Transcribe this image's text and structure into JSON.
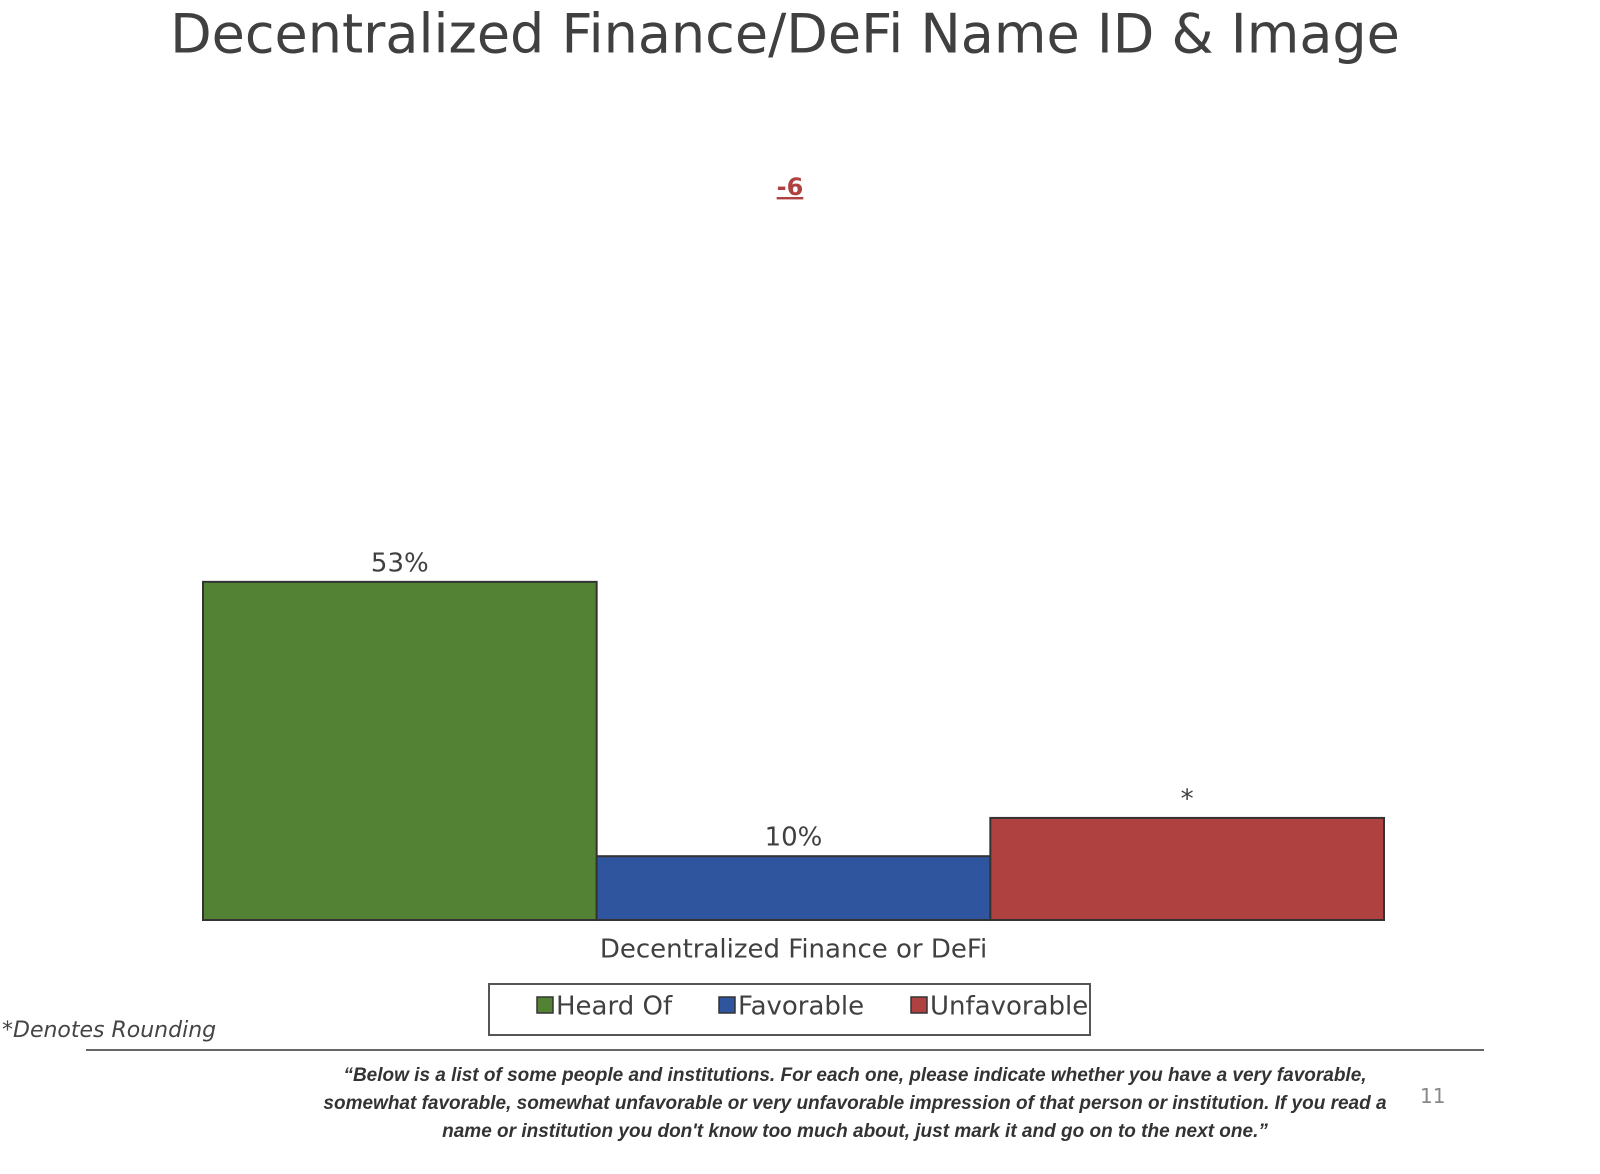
{
  "chart_data": {
    "type": "bar",
    "title": "Decentralized Finance/DeFi Name ID & Image",
    "annotation": "-6",
    "categories": [
      "Decentralized Finance or DeFi"
    ],
    "series": [
      {
        "name": "Heard Of",
        "color": "#548235",
        "values": [
          53
        ],
        "value_labels": [
          "53%"
        ]
      },
      {
        "name": "Favorable",
        "color": "#2f559e",
        "values": [
          10
        ],
        "value_labels": [
          "10%"
        ]
      },
      {
        "name": "Unfavorable",
        "color": "#b04141",
        "values": [
          16
        ],
        "value_labels": [
          "*"
        ]
      }
    ],
    "ylim": [
      0,
      100
    ]
  },
  "footer": {
    "note": "*Denotes Rounding",
    "quote": "“Below is a list of some people and institutions. For each one, please indicate whether you have a very favorable, somewhat favorable, somewhat unfavorable or very unfavorable impression of that person or institution. If you read a name or institution you don't know too much about, just mark it and go on to the next one.”",
    "page_number": "11"
  }
}
